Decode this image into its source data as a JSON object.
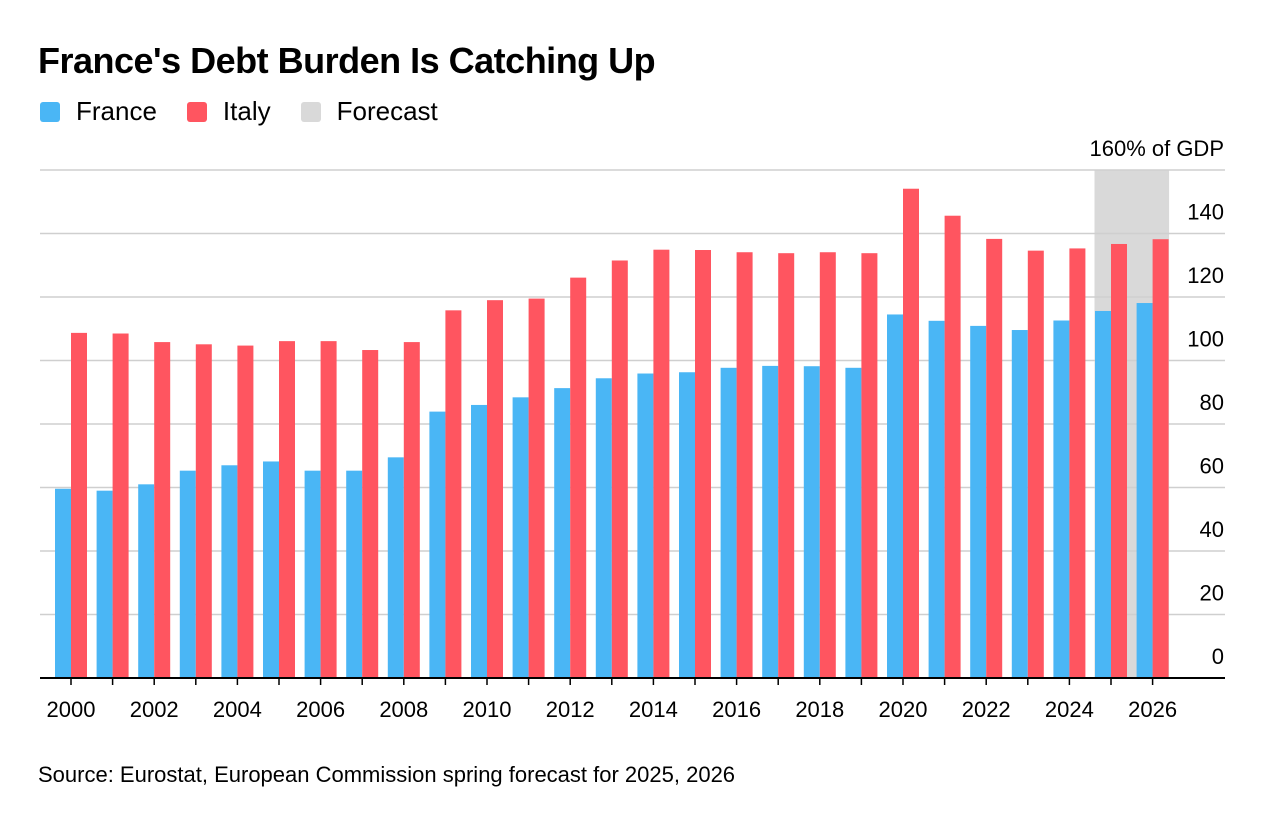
{
  "title": "France's Debt Burden Is Catching Up",
  "legend": [
    {
      "label": "France",
      "color": "#4ab6f5"
    },
    {
      "label": "Italy",
      "color": "#ff5560"
    },
    {
      "label": "Forecast",
      "color": "#d9d9d9"
    }
  ],
  "source": "Source: Eurostat, European Commission spring forecast for 2025, 2026",
  "chart_data": {
    "type": "bar",
    "title": "France's Debt Burden Is Catching Up",
    "unit_label": "160% of GDP",
    "ylabel": "% of GDP",
    "xlabel": "",
    "ylim": [
      0,
      160
    ],
    "yticks": [
      0,
      20,
      40,
      60,
      80,
      100,
      120,
      140
    ],
    "ytick_labels": [
      "0",
      "20",
      "40",
      "60",
      "80",
      "100",
      "120",
      "140"
    ],
    "grid": true,
    "categories": [
      "2000",
      "2001",
      "2002",
      "2003",
      "2004",
      "2005",
      "2006",
      "2007",
      "2008",
      "2009",
      "2010",
      "2011",
      "2012",
      "2013",
      "2014",
      "2015",
      "2016",
      "2017",
      "2018",
      "2019",
      "2020",
      "2021",
      "2022",
      "2023",
      "2024",
      "2025",
      "2026"
    ],
    "xtick_labels": [
      "2000",
      "2002",
      "2004",
      "2006",
      "2008",
      "2010",
      "2012",
      "2014",
      "2016",
      "2018",
      "2020",
      "2022",
      "2024",
      "2026"
    ],
    "forecast_categories": [
      "2025",
      "2026"
    ],
    "series": [
      {
        "name": "France",
        "color": "#4ab6f5",
        "values": [
          59.6,
          59.0,
          61.0,
          65.3,
          67.0,
          68.2,
          65.3,
          65.3,
          69.5,
          83.9,
          86.0,
          88.4,
          91.3,
          94.4,
          95.9,
          96.3,
          97.7,
          98.3,
          98.2,
          97.7,
          114.5,
          112.5,
          110.9,
          109.6,
          112.6,
          115.6,
          118.1
        ]
      },
      {
        "name": "Italy",
        "color": "#ff5560",
        "values": [
          108.7,
          108.5,
          105.8,
          105.1,
          104.7,
          106.1,
          106.1,
          103.3,
          105.8,
          115.8,
          119.0,
          119.5,
          126.1,
          131.5,
          134.9,
          134.8,
          134.1,
          133.8,
          134.1,
          133.8,
          154.1,
          145.6,
          138.3,
          134.6,
          135.3,
          136.7,
          138.2
        ]
      }
    ]
  }
}
